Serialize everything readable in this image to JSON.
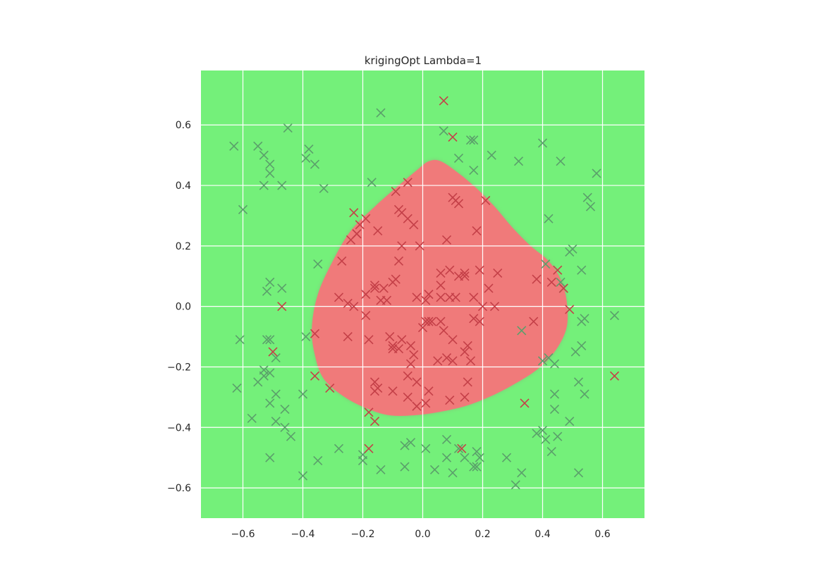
{
  "chart_data": {
    "type": "scatter",
    "title": "krigingOpt Lambda=1",
    "xlabel": "",
    "ylabel": "",
    "xlim": [
      -0.74,
      0.74
    ],
    "ylim": [
      -0.7,
      0.78
    ],
    "xticks": [
      -0.6,
      -0.4,
      -0.2,
      0.0,
      0.2,
      0.4,
      0.6
    ],
    "yticks": [
      -0.6,
      -0.4,
      -0.2,
      0.0,
      0.2,
      0.4,
      0.6
    ],
    "xtick_labels": [
      "−0.6",
      "−0.4",
      "−0.2",
      "0.0",
      "0.2",
      "0.4",
      "0.6"
    ],
    "ytick_labels": [
      "−0.6",
      "−0.4",
      "−0.2",
      "0.0",
      "0.2",
      "0.4",
      "0.6"
    ],
    "grid": true,
    "colors": {
      "background_region": "#74f07a",
      "predicted_region": "#f07a7a",
      "grid": "#ffffff",
      "marker_class_a": "#5b9f6b",
      "marker_class_b": "#c44048"
    },
    "region": {
      "label": "predicted class B region",
      "boundary": [
        [
          0.02,
          0.48
        ],
        [
          0.06,
          0.48
        ],
        [
          0.12,
          0.44
        ],
        [
          0.18,
          0.39
        ],
        [
          0.24,
          0.33
        ],
        [
          0.3,
          0.26
        ],
        [
          0.36,
          0.2
        ],
        [
          0.42,
          0.15
        ],
        [
          0.46,
          0.09
        ],
        [
          0.48,
          0.02
        ],
        [
          0.48,
          -0.07
        ],
        [
          0.44,
          -0.15
        ],
        [
          0.38,
          -0.21
        ],
        [
          0.3,
          -0.26
        ],
        [
          0.22,
          -0.3
        ],
        [
          0.14,
          -0.33
        ],
        [
          0.05,
          -0.35
        ],
        [
          -0.03,
          -0.36
        ],
        [
          -0.11,
          -0.36
        ],
        [
          -0.18,
          -0.34
        ],
        [
          -0.26,
          -0.3
        ],
        [
          -0.33,
          -0.24
        ],
        [
          -0.36,
          -0.16
        ],
        [
          -0.37,
          -0.07
        ],
        [
          -0.35,
          0.04
        ],
        [
          -0.3,
          0.15
        ],
        [
          -0.24,
          0.25
        ],
        [
          -0.16,
          0.33
        ],
        [
          -0.08,
          0.4
        ],
        [
          -0.02,
          0.45
        ]
      ]
    },
    "series": [
      {
        "marker": "x",
        "color": "#5b9f6b",
        "points": [
          [
            -0.63,
            0.53
          ],
          [
            -0.55,
            0.53
          ],
          [
            -0.53,
            0.5
          ],
          [
            -0.51,
            0.47
          ],
          [
            -0.51,
            0.44
          ],
          [
            -0.53,
            0.4
          ],
          [
            -0.47,
            0.4
          ],
          [
            -0.45,
            0.59
          ],
          [
            -0.38,
            0.52
          ],
          [
            -0.39,
            0.49
          ],
          [
            -0.36,
            0.47
          ],
          [
            -0.33,
            0.39
          ],
          [
            -0.6,
            0.32
          ],
          [
            -0.14,
            0.64
          ],
          [
            -0.17,
            0.41
          ],
          [
            0.07,
            0.58
          ],
          [
            0.16,
            0.55
          ],
          [
            0.17,
            0.55
          ],
          [
            0.12,
            0.49
          ],
          [
            0.17,
            0.45
          ],
          [
            0.23,
            0.5
          ],
          [
            0.32,
            0.48
          ],
          [
            0.4,
            0.54
          ],
          [
            0.46,
            0.48
          ],
          [
            0.58,
            0.44
          ],
          [
            0.55,
            0.36
          ],
          [
            0.56,
            0.33
          ],
          [
            0.42,
            0.29
          ],
          [
            0.49,
            0.18
          ],
          [
            0.5,
            0.19
          ],
          [
            0.53,
            0.12
          ],
          [
            0.41,
            0.14
          ],
          [
            0.46,
            0.08
          ],
          [
            0.47,
            0.06
          ],
          [
            -0.35,
            0.14
          ],
          [
            -0.51,
            0.08
          ],
          [
            -0.52,
            0.05
          ],
          [
            -0.47,
            0.06
          ],
          [
            -0.39,
            -0.1
          ],
          [
            -0.61,
            -0.11
          ],
          [
            -0.52,
            -0.11
          ],
          [
            -0.51,
            -0.11
          ],
          [
            -0.49,
            -0.17
          ],
          [
            -0.53,
            -0.21
          ],
          [
            -0.51,
            -0.22
          ],
          [
            -0.53,
            -0.23
          ],
          [
            -0.55,
            -0.25
          ],
          [
            -0.62,
            -0.27
          ],
          [
            -0.49,
            -0.29
          ],
          [
            -0.51,
            -0.32
          ],
          [
            -0.46,
            -0.34
          ],
          [
            -0.57,
            -0.37
          ],
          [
            -0.49,
            -0.38
          ],
          [
            -0.46,
            -0.4
          ],
          [
            -0.44,
            -0.43
          ],
          [
            -0.4,
            -0.29
          ],
          [
            -0.51,
            -0.5
          ],
          [
            -0.4,
            -0.56
          ],
          [
            -0.35,
            -0.51
          ],
          [
            -0.28,
            -0.47
          ],
          [
            -0.2,
            -0.49
          ],
          [
            -0.2,
            -0.51
          ],
          [
            -0.14,
            -0.54
          ],
          [
            -0.06,
            -0.46
          ],
          [
            -0.04,
            -0.45
          ],
          [
            0.01,
            -0.47
          ],
          [
            -0.06,
            -0.53
          ],
          [
            0.04,
            -0.54
          ],
          [
            0.08,
            -0.5
          ],
          [
            0.08,
            -0.44
          ],
          [
            0.1,
            -0.55
          ],
          [
            0.12,
            -0.47
          ],
          [
            0.14,
            -0.5
          ],
          [
            0.18,
            -0.48
          ],
          [
            0.17,
            -0.53
          ],
          [
            0.18,
            -0.53
          ],
          [
            0.19,
            -0.5
          ],
          [
            0.28,
            -0.5
          ],
          [
            0.31,
            -0.59
          ],
          [
            0.33,
            -0.55
          ],
          [
            0.38,
            -0.42
          ],
          [
            0.4,
            -0.41
          ],
          [
            0.41,
            -0.44
          ],
          [
            0.43,
            -0.48
          ],
          [
            0.44,
            -0.34
          ],
          [
            0.45,
            -0.43
          ],
          [
            0.44,
            -0.29
          ],
          [
            0.49,
            -0.38
          ],
          [
            0.52,
            -0.55
          ],
          [
            0.52,
            -0.25
          ],
          [
            0.54,
            -0.29
          ],
          [
            0.51,
            -0.15
          ],
          [
            0.53,
            -0.13
          ],
          [
            0.53,
            -0.05
          ],
          [
            0.54,
            -0.04
          ],
          [
            0.64,
            -0.03
          ],
          [
            0.44,
            -0.19
          ],
          [
            0.4,
            -0.18
          ],
          [
            0.42,
            -0.17
          ],
          [
            0.33,
            -0.08
          ]
        ]
      },
      {
        "marker": "x",
        "color": "#c44048",
        "points": [
          [
            0.07,
            0.68
          ],
          [
            0.1,
            0.56
          ],
          [
            -0.47,
            0.0
          ],
          [
            -0.5,
            -0.15
          ],
          [
            -0.36,
            -0.09
          ],
          [
            -0.36,
            -0.23
          ],
          [
            -0.31,
            -0.27
          ],
          [
            -0.16,
            -0.38
          ],
          [
            -0.18,
            -0.35
          ],
          [
            -0.18,
            -0.47
          ],
          [
            0.13,
            -0.47
          ],
          [
            0.34,
            -0.32
          ],
          [
            0.45,
            0.12
          ],
          [
            0.47,
            0.06
          ],
          [
            0.49,
            -0.01
          ],
          [
            0.64,
            -0.23
          ],
          [
            -0.23,
            0.31
          ],
          [
            -0.21,
            0.27
          ],
          [
            -0.24,
            0.22
          ],
          [
            -0.22,
            0.24
          ],
          [
            -0.19,
            0.29
          ],
          [
            -0.15,
            0.25
          ],
          [
            -0.09,
            0.38
          ],
          [
            -0.05,
            0.41
          ],
          [
            -0.08,
            0.32
          ],
          [
            -0.07,
            0.31
          ],
          [
            -0.05,
            0.29
          ],
          [
            -0.03,
            0.27
          ],
          [
            -0.07,
            0.2
          ],
          [
            -0.01,
            0.2
          ],
          [
            -0.08,
            0.15
          ],
          [
            -0.09,
            0.09
          ],
          [
            -0.1,
            0.08
          ],
          [
            -0.13,
            0.06
          ],
          [
            -0.14,
            0.02
          ],
          [
            -0.16,
            0.07
          ],
          [
            -0.16,
            0.06
          ],
          [
            -0.19,
            0.04
          ],
          [
            -0.19,
            -0.03
          ],
          [
            -0.27,
            0.15
          ],
          [
            -0.22,
            0.24
          ],
          [
            -0.28,
            0.03
          ],
          [
            -0.25,
            0.01
          ],
          [
            -0.23,
            0.0
          ],
          [
            -0.25,
            -0.1
          ],
          [
            -0.18,
            -0.11
          ],
          [
            -0.11,
            -0.1
          ],
          [
            -0.1,
            -0.13
          ],
          [
            -0.1,
            -0.14
          ],
          [
            -0.08,
            -0.14
          ],
          [
            -0.07,
            -0.11
          ],
          [
            -0.04,
            -0.13
          ],
          [
            -0.03,
            -0.16
          ],
          [
            -0.04,
            -0.19
          ],
          [
            -0.05,
            -0.23
          ],
          [
            -0.02,
            -0.25
          ],
          [
            -0.05,
            -0.3
          ],
          [
            -0.02,
            -0.33
          ],
          [
            0.02,
            -0.28
          ],
          [
            0.01,
            -0.32
          ],
          [
            -0.16,
            -0.28
          ],
          [
            -0.16,
            -0.25
          ],
          [
            -0.1,
            -0.28
          ],
          [
            -0.15,
            -0.27
          ],
          [
            0.0,
            -0.07
          ],
          [
            0.02,
            -0.05
          ],
          [
            0.01,
            -0.05
          ],
          [
            0.03,
            -0.05
          ],
          [
            0.06,
            -0.05
          ],
          [
            0.07,
            -0.08
          ],
          [
            0.1,
            -0.11
          ],
          [
            0.1,
            -0.18
          ],
          [
            0.14,
            -0.15
          ],
          [
            0.16,
            -0.18
          ],
          [
            0.17,
            -0.04
          ],
          [
            0.19,
            -0.05
          ],
          [
            0.2,
            0.0
          ],
          [
            0.24,
            0.0
          ],
          [
            0.22,
            0.06
          ],
          [
            0.19,
            0.12
          ],
          [
            0.17,
            0.03
          ],
          [
            0.14,
            0.11
          ],
          [
            0.12,
            0.1
          ],
          [
            0.14,
            0.1
          ],
          [
            0.09,
            0.12
          ],
          [
            0.06,
            0.11
          ],
          [
            0.06,
            0.07
          ],
          [
            0.06,
            0.03
          ],
          [
            0.09,
            0.03
          ],
          [
            0.11,
            0.03
          ],
          [
            0.02,
            0.04
          ],
          [
            0.01,
            0.02
          ],
          [
            -0.02,
            0.03
          ],
          [
            0.1,
            0.36
          ],
          [
            0.12,
            0.34
          ],
          [
            0.11,
            0.35
          ],
          [
            0.21,
            0.35
          ],
          [
            0.18,
            0.25
          ],
          [
            0.08,
            0.22
          ],
          [
            0.25,
            0.11
          ],
          [
            0.38,
            0.09
          ],
          [
            0.43,
            0.08
          ],
          [
            0.37,
            -0.05
          ],
          [
            0.15,
            -0.25
          ],
          [
            0.14,
            -0.3
          ],
          [
            0.09,
            -0.31
          ],
          [
            0.15,
            -0.13
          ],
          [
            0.05,
            -0.18
          ],
          [
            0.08,
            -0.17
          ],
          [
            -0.12,
            0.02
          ]
        ]
      }
    ]
  }
}
